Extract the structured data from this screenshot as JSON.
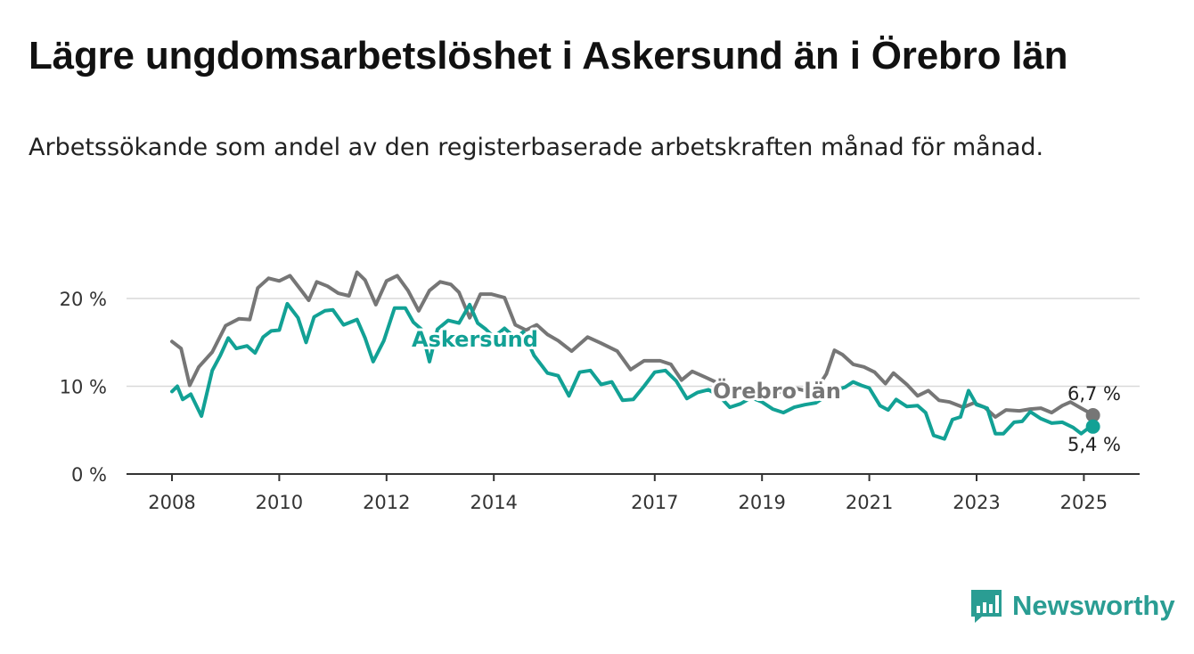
{
  "header": {
    "title": "Lägre ungdomsarbetslöshet i Askersund än i Örebro län",
    "subtitle": "Arbetssökande som andel av den registerbaserade arbetskraften månad för månad."
  },
  "brand": {
    "name": "Newsworthy",
    "icon": "bar-chart-speech-bubble-icon",
    "color": "#2a9d93"
  },
  "chart_data": {
    "type": "line",
    "x_unit": "year",
    "y_unit": "%",
    "ylim": [
      0,
      25
    ],
    "xlim": [
      2008,
      2025.5
    ],
    "grid": true,
    "yticks": [
      0,
      10,
      20
    ],
    "ytick_labels": [
      "0 %",
      "10 %",
      "20 %"
    ],
    "xticks": [
      2008,
      2010,
      2012,
      2014,
      2017,
      2019,
      2021,
      2023,
      2025
    ],
    "xtick_labels": [
      "2008",
      "2010",
      "2012",
      "2014",
      "2017",
      "2019",
      "2021",
      "2023",
      "2025"
    ],
    "series": [
      {
        "name": "Örebro län",
        "color": "#767676",
        "end_label": "6,7 %",
        "points": [
          [
            2008.0,
            15.1
          ],
          [
            2008.17,
            14.3
          ],
          [
            2008.33,
            10.1
          ],
          [
            2008.5,
            12.2
          ],
          [
            2008.75,
            13.9
          ],
          [
            2009.0,
            16.9
          ],
          [
            2009.25,
            17.7
          ],
          [
            2009.45,
            17.6
          ],
          [
            2009.6,
            21.2
          ],
          [
            2009.8,
            22.3
          ],
          [
            2010.0,
            22.0
          ],
          [
            2010.2,
            22.6
          ],
          [
            2010.4,
            21.0
          ],
          [
            2010.55,
            19.8
          ],
          [
            2010.7,
            21.9
          ],
          [
            2010.9,
            21.4
          ],
          [
            2011.1,
            20.6
          ],
          [
            2011.3,
            20.3
          ],
          [
            2011.45,
            23.0
          ],
          [
            2011.6,
            22.1
          ],
          [
            2011.8,
            19.3
          ],
          [
            2012.0,
            22.0
          ],
          [
            2012.2,
            22.6
          ],
          [
            2012.4,
            20.9
          ],
          [
            2012.6,
            18.6
          ],
          [
            2012.8,
            20.9
          ],
          [
            2013.0,
            21.9
          ],
          [
            2013.2,
            21.6
          ],
          [
            2013.35,
            20.7
          ],
          [
            2013.55,
            17.8
          ],
          [
            2013.75,
            20.5
          ],
          [
            2013.95,
            20.5
          ],
          [
            2014.2,
            20.1
          ],
          [
            2014.4,
            17.0
          ],
          [
            2014.6,
            16.4
          ],
          [
            2014.8,
            17.0
          ],
          [
            2015.0,
            15.9
          ],
          [
            2015.2,
            15.2
          ],
          [
            2015.45,
            14.0
          ],
          [
            2015.75,
            15.6
          ],
          [
            2016.0,
            14.9
          ],
          [
            2016.3,
            14.0
          ],
          [
            2016.55,
            11.9
          ],
          [
            2016.8,
            12.9
          ],
          [
            2017.1,
            12.9
          ],
          [
            2017.3,
            12.5
          ],
          [
            2017.5,
            10.7
          ],
          [
            2017.7,
            11.7
          ],
          [
            2017.95,
            11.0
          ],
          [
            2018.2,
            10.3
          ],
          [
            2018.4,
            9.4
          ],
          [
            2018.6,
            9.5
          ],
          [
            2018.8,
            9.9
          ],
          [
            2019.0,
            9.3
          ],
          [
            2019.2,
            9.0
          ],
          [
            2019.4,
            9.5
          ],
          [
            2019.6,
            9.8
          ],
          [
            2019.8,
            9.5
          ],
          [
            2020.0,
            9.5
          ],
          [
            2020.2,
            11.4
          ],
          [
            2020.35,
            14.1
          ],
          [
            2020.5,
            13.6
          ],
          [
            2020.7,
            12.5
          ],
          [
            2020.9,
            12.2
          ],
          [
            2021.1,
            11.6
          ],
          [
            2021.3,
            10.3
          ],
          [
            2021.45,
            11.5
          ],
          [
            2021.7,
            10.2
          ],
          [
            2021.9,
            8.9
          ],
          [
            2022.1,
            9.5
          ],
          [
            2022.3,
            8.4
          ],
          [
            2022.5,
            8.2
          ],
          [
            2022.75,
            7.6
          ],
          [
            2022.95,
            8.1
          ],
          [
            2023.15,
            7.6
          ],
          [
            2023.35,
            6.5
          ],
          [
            2023.55,
            7.3
          ],
          [
            2023.8,
            7.2
          ],
          [
            2024.0,
            7.4
          ],
          [
            2024.2,
            7.5
          ],
          [
            2024.4,
            7.0
          ],
          [
            2024.6,
            7.8
          ],
          [
            2024.75,
            8.2
          ],
          [
            2024.95,
            7.5
          ],
          [
            2025.1,
            7.0
          ],
          [
            2025.17,
            6.7
          ]
        ]
      },
      {
        "name": "Askersund",
        "color": "#12a195",
        "end_label": "5,4 %",
        "points": [
          [
            2008.0,
            9.4
          ],
          [
            2008.1,
            10.0
          ],
          [
            2008.2,
            8.5
          ],
          [
            2008.35,
            9.1
          ],
          [
            2008.55,
            6.6
          ],
          [
            2008.75,
            11.8
          ],
          [
            2008.9,
            13.5
          ],
          [
            2009.05,
            15.5
          ],
          [
            2009.2,
            14.3
          ],
          [
            2009.4,
            14.6
          ],
          [
            2009.55,
            13.8
          ],
          [
            2009.7,
            15.6
          ],
          [
            2009.85,
            16.3
          ],
          [
            2010.0,
            16.4
          ],
          [
            2010.15,
            19.4
          ],
          [
            2010.35,
            17.8
          ],
          [
            2010.5,
            15.0
          ],
          [
            2010.65,
            17.9
          ],
          [
            2010.85,
            18.6
          ],
          [
            2011.0,
            18.7
          ],
          [
            2011.2,
            17.0
          ],
          [
            2011.45,
            17.6
          ],
          [
            2011.6,
            15.5
          ],
          [
            2011.75,
            12.8
          ],
          [
            2011.95,
            15.2
          ],
          [
            2012.15,
            18.9
          ],
          [
            2012.35,
            18.9
          ],
          [
            2012.5,
            17.3
          ],
          [
            2012.65,
            16.5
          ],
          [
            2012.8,
            12.8
          ],
          [
            2012.95,
            16.5
          ],
          [
            2013.15,
            17.5
          ],
          [
            2013.35,
            17.2
          ],
          [
            2013.55,
            19.3
          ],
          [
            2013.7,
            17.2
          ],
          [
            2013.85,
            16.5
          ],
          [
            2014.0,
            15.6
          ],
          [
            2014.2,
            16.6
          ],
          [
            2014.4,
            15.5
          ],
          [
            2014.55,
            16.2
          ],
          [
            2014.75,
            13.5
          ],
          [
            2015.0,
            11.5
          ],
          [
            2015.2,
            11.2
          ],
          [
            2015.4,
            8.9
          ],
          [
            2015.6,
            11.6
          ],
          [
            2015.8,
            11.8
          ],
          [
            2016.0,
            10.2
          ],
          [
            2016.2,
            10.5
          ],
          [
            2016.4,
            8.4
          ],
          [
            2016.6,
            8.5
          ],
          [
            2016.8,
            10.0
          ],
          [
            2017.0,
            11.6
          ],
          [
            2017.2,
            11.8
          ],
          [
            2017.4,
            10.6
          ],
          [
            2017.6,
            8.6
          ],
          [
            2017.8,
            9.3
          ],
          [
            2018.0,
            9.6
          ],
          [
            2018.2,
            8.9
          ],
          [
            2018.4,
            7.6
          ],
          [
            2018.6,
            8.0
          ],
          [
            2018.8,
            8.7
          ],
          [
            2019.0,
            8.2
          ],
          [
            2019.2,
            7.4
          ],
          [
            2019.4,
            7.0
          ],
          [
            2019.6,
            7.6
          ],
          [
            2019.8,
            7.9
          ],
          [
            2020.0,
            8.1
          ],
          [
            2020.2,
            8.9
          ],
          [
            2020.4,
            9.6
          ],
          [
            2020.55,
            9.9
          ],
          [
            2020.7,
            10.5
          ],
          [
            2020.85,
            10.1
          ],
          [
            2021.0,
            9.8
          ],
          [
            2021.2,
            7.8
          ],
          [
            2021.35,
            7.3
          ],
          [
            2021.5,
            8.5
          ],
          [
            2021.7,
            7.7
          ],
          [
            2021.9,
            7.8
          ],
          [
            2022.05,
            7.0
          ],
          [
            2022.2,
            4.4
          ],
          [
            2022.4,
            4.0
          ],
          [
            2022.55,
            6.2
          ],
          [
            2022.7,
            6.5
          ],
          [
            2022.85,
            9.5
          ],
          [
            2023.0,
            7.9
          ],
          [
            2023.2,
            7.5
          ],
          [
            2023.35,
            4.6
          ],
          [
            2023.5,
            4.6
          ],
          [
            2023.7,
            5.9
          ],
          [
            2023.85,
            6.0
          ],
          [
            2024.0,
            7.1
          ],
          [
            2024.2,
            6.3
          ],
          [
            2024.4,
            5.8
          ],
          [
            2024.6,
            5.9
          ],
          [
            2024.8,
            5.3
          ],
          [
            2024.95,
            4.6
          ],
          [
            2025.1,
            5.3
          ],
          [
            2025.17,
            5.4
          ]
        ]
      }
    ]
  }
}
